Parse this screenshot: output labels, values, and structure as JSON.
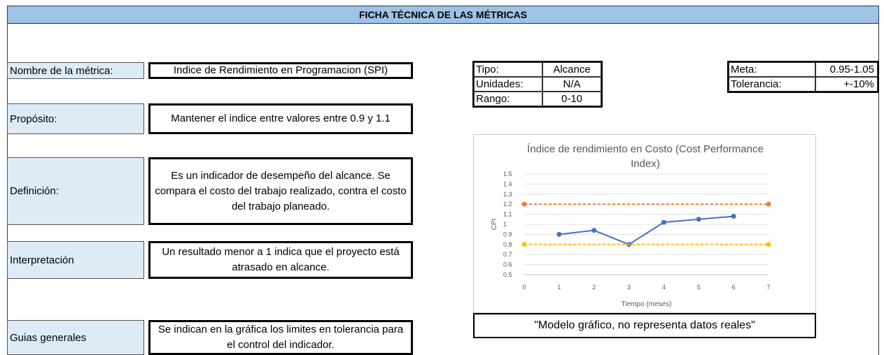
{
  "header": {
    "title": "FICHA TÉCNICA DE LAS MÉTRICAS"
  },
  "rows": [
    {
      "label": "Nombre de la métrica:",
      "value": "Indice de Rendimiento en Programacion (SPI)"
    },
    {
      "label": "Propósito:",
      "value": "Mantener el indice entre valores entre 0.9 y 1.1"
    },
    {
      "label": "Definición:",
      "value": "Es un indicador de desempeño del alcance. Se compara el costo del trabajo realizado, contra el costo del trabajo planeado."
    },
    {
      "label": "Interpretación",
      "value": "Un resultado menor a 1 indica que el proyecto está atrasado en alcance."
    },
    {
      "label": "Guias generales",
      "value": "Se indican en la gráfica los limites en tolerancia para el control del indicador."
    }
  ],
  "info": [
    {
      "label": "Tipo:",
      "value": "Alcance"
    },
    {
      "label": "Unidades:",
      "value": "N/A"
    },
    {
      "label": "Rango:",
      "value": "0-10"
    }
  ],
  "targets": [
    {
      "label": "Meta:",
      "value": "0.95-1.05"
    },
    {
      "label": "Tolerancia:",
      "value": "+-10%"
    }
  ],
  "chart_data": {
    "type": "line",
    "title": "Índice de rendimiento en Costo (Cost Performance Index)",
    "x_label": "Tiempo (meses)",
    "y_label": "CPI",
    "xlim": [
      0,
      7
    ],
    "xticks": [
      0,
      1,
      2,
      3,
      4,
      5,
      6,
      7
    ],
    "ylim": [
      0.5,
      1.5
    ],
    "yticks": [
      0.5,
      0.6,
      0.7,
      0.8,
      0.9,
      1,
      1.1,
      1.2,
      1.3,
      1.4,
      1.5
    ],
    "grid": true,
    "series": [
      {
        "x": [
          1,
          2,
          3,
          4,
          5,
          6
        ],
        "values": [
          0.9,
          0.94,
          0.8,
          1.02,
          1.05,
          1.08
        ],
        "color": "#4472c4",
        "dashed": false
      },
      {
        "x": [
          0,
          7
        ],
        "values": [
          1.2,
          1.2
        ],
        "color": "#ed7d31",
        "dashed": true
      },
      {
        "x": [
          0,
          7
        ],
        "values": [
          0.8,
          0.8
        ],
        "color": "#ffc000",
        "dashed": true
      }
    ]
  },
  "caption": "\"Modelo gráfico, no representa datos reales\""
}
